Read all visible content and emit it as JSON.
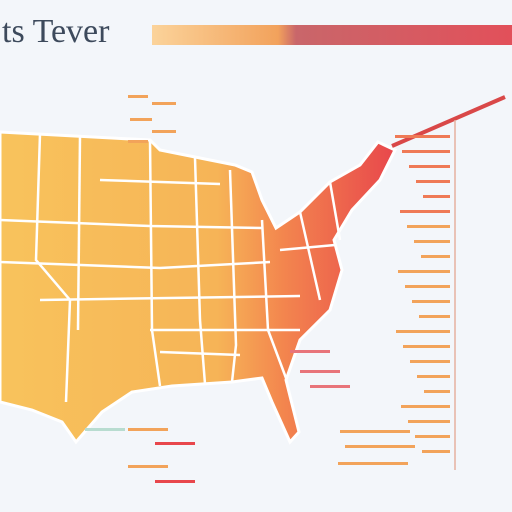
{
  "title": "ts Tever"
}
